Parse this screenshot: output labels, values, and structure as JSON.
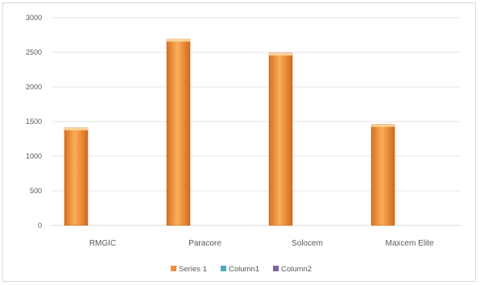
{
  "chart_data": {
    "type": "bar",
    "categories": [
      "RMGIC",
      "Paracore",
      "Solocem",
      "Maxcem Elite"
    ],
    "series": [
      {
        "name": "Series 1",
        "values": [
          1410,
          2690,
          2490,
          1460
        ],
        "color": "#f0923a"
      },
      {
        "name": "Column1",
        "values": [
          0,
          0,
          0,
          0
        ],
        "color": "#4bacc6"
      },
      {
        "name": "Column2",
        "values": [
          0,
          0,
          0,
          0
        ],
        "color": "#8064a2"
      }
    ],
    "title": "",
    "xlabel": "",
    "ylabel": "",
    "ylim": [
      0,
      3000
    ],
    "yticks": [
      "0",
      "500",
      "1000",
      "1500",
      "2000",
      "2500",
      "3000"
    ],
    "grid": true,
    "legend_position": "bottom"
  }
}
